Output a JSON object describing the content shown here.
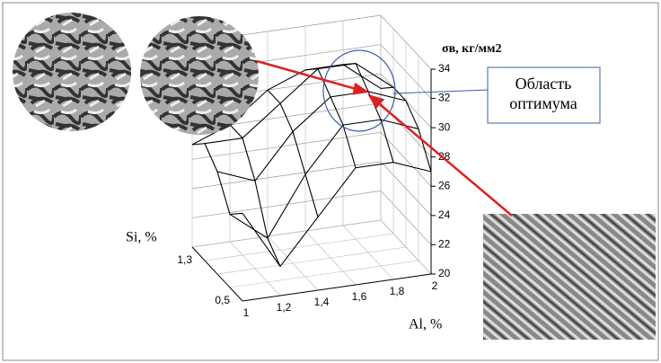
{
  "chart_data": {
    "type": "surface",
    "z_title": "σв, кг/мм2",
    "x_title": "Al, %",
    "y_title": "Si, %",
    "x_categories": [
      "1",
      "1,2",
      "1,4",
      "1,6",
      "1,8",
      "2"
    ],
    "y_categories": [
      "0,5",
      null,
      null,
      "1,3",
      null
    ],
    "z": [
      [
        26,
        22,
        25,
        28,
        28,
        27
      ],
      [
        25,
        23,
        27,
        30,
        30,
        29
      ],
      [
        27,
        26,
        29,
        31,
        31,
        30
      ],
      [
        28,
        28,
        30,
        32,
        32,
        30
      ],
      [
        27,
        28,
        30,
        31,
        31,
        29
      ]
    ],
    "zlim": [
      20,
      34
    ],
    "zticks": [
      20,
      22,
      24,
      26,
      28,
      30,
      32,
      34
    ],
    "callout": "Область\nоптимума",
    "grid": true,
    "line_color": "#000000"
  }
}
